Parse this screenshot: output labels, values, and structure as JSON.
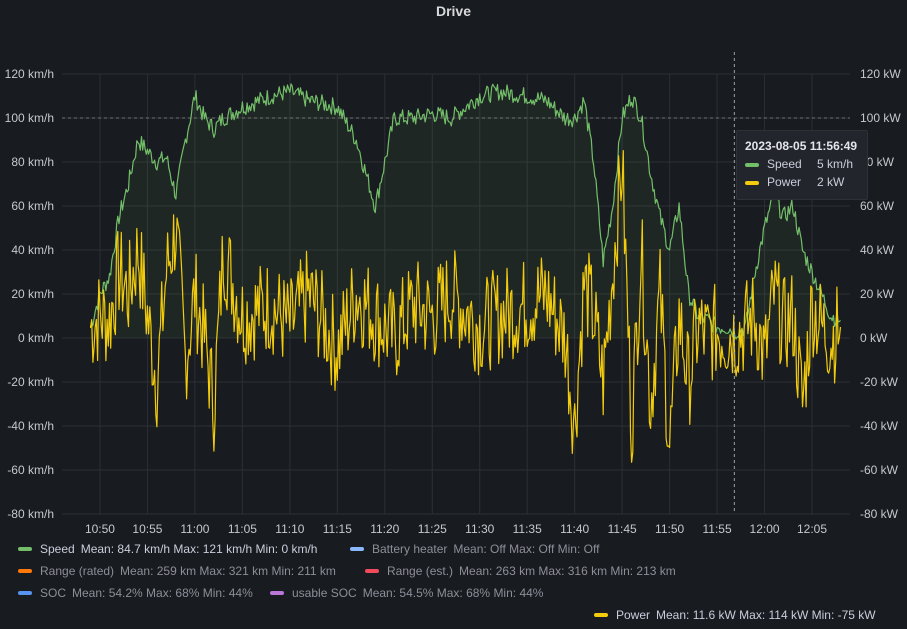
{
  "panel": {
    "title": "Drive"
  },
  "colors": {
    "speed": "#73bf69",
    "power": "#f2cc0c",
    "battery_heater": "#8ab8ff",
    "range_rated": "#ff780a",
    "range_est": "#f2495c",
    "soc": "#5794f2",
    "usable_soc": "#b877d9",
    "background": "#181b1f",
    "grid": "#2c2f35"
  },
  "chart_data": {
    "type": "line",
    "title": "Drive",
    "x_ticks": [
      "10:50",
      "10:55",
      "11:00",
      "11:05",
      "11:10",
      "11:15",
      "11:20",
      "11:25",
      "11:30",
      "11:35",
      "11:40",
      "11:45",
      "11:50",
      "11:55",
      "12:00",
      "12:05"
    ],
    "y_left": {
      "ticks": [
        "120 km/h",
        "100 km/h",
        "80 km/h",
        "60 km/h",
        "40 km/h",
        "20 km/h",
        "0 km/h",
        "-20 km/h",
        "-40 km/h",
        "-60 km/h",
        "-80 km/h"
      ],
      "ylim": [
        -80,
        120
      ],
      "unit": "km/h"
    },
    "y_right": {
      "ticks": [
        "120 kW",
        "100 kW",
        "80 kW",
        "60 kW",
        "40 kW",
        "20 kW",
        "0 kW",
        "-20 kW",
        "-40 kW",
        "-60 kW",
        "-80 kW"
      ],
      "ylim": [
        -80,
        120
      ],
      "unit": "kW"
    },
    "threshold_line": 100,
    "cursor_time": "11:56:49",
    "series": [
      {
        "name": "Speed",
        "unit": "km/h",
        "x": [
          "10:49",
          "10:50",
          "10:51",
          "10:52",
          "10:53",
          "10:54",
          "10:55",
          "10:56",
          "10:57",
          "10:58",
          "10:59",
          "11:00",
          "11:01",
          "11:02",
          "11:03",
          "11:05",
          "11:08",
          "11:10",
          "11:12",
          "11:15",
          "11:17",
          "11:19",
          "11:21",
          "11:23",
          "11:25",
          "11:27",
          "11:30",
          "11:32",
          "11:35",
          "11:37",
          "11:39",
          "11:40",
          "11:41",
          "11:42",
          "11:43",
          "11:44",
          "11:45",
          "11:46",
          "11:47",
          "11:48",
          "11:49",
          "11:50",
          "11:51",
          "11:52",
          "11:53",
          "11:54",
          "11:55",
          "11:56",
          "11:57",
          "11:58",
          "11:59",
          "12:00",
          "12:01",
          "12:02",
          "12:03",
          "12:04",
          "12:05",
          "12:06",
          "12:07",
          "12:08"
        ],
        "values": [
          5,
          20,
          28,
          55,
          70,
          90,
          85,
          80,
          82,
          65,
          90,
          110,
          100,
          95,
          100,
          105,
          110,
          112,
          108,
          105,
          90,
          60,
          100,
          100,
          102,
          100,
          110,
          112,
          110,
          108,
          100,
          100,
          108,
          80,
          35,
          60,
          100,
          110,
          100,
          75,
          55,
          40,
          60,
          20,
          10,
          8,
          5,
          5,
          3,
          5,
          30,
          50,
          65,
          55,
          60,
          40,
          30,
          20,
          10,
          8
        ]
      },
      {
        "name": "Power",
        "unit": "kW",
        "x": [
          "10:49",
          "10:50",
          "10:51",
          "10:52",
          "10:53",
          "10:54",
          "10:55",
          "10:56",
          "10:57",
          "10:58",
          "10:59",
          "11:00",
          "11:01",
          "11:02",
          "11:03",
          "11:05",
          "11:08",
          "11:10",
          "11:12",
          "11:15",
          "11:17",
          "11:19",
          "11:21",
          "11:23",
          "11:25",
          "11:27",
          "11:30",
          "11:32",
          "11:35",
          "11:37",
          "11:39",
          "11:40",
          "11:41",
          "11:42",
          "11:43",
          "11:44",
          "11:45",
          "11:46",
          "11:47",
          "11:48",
          "11:49",
          "11:50",
          "11:51",
          "11:52",
          "11:53",
          "11:54",
          "11:55",
          "11:56",
          "11:57",
          "11:58",
          "11:59",
          "12:00",
          "12:01",
          "12:02",
          "12:03",
          "12:04",
          "12:05",
          "12:06",
          "12:07",
          "12:08"
        ],
        "values": [
          5,
          10,
          8,
          30,
          20,
          40,
          10,
          -20,
          30,
          50,
          -10,
          20,
          0,
          -30,
          40,
          10,
          15,
          5,
          20,
          -5,
          20,
          10,
          0,
          15,
          10,
          20,
          5,
          10,
          15,
          20,
          0,
          -40,
          25,
          10,
          -20,
          30,
          80,
          -40,
          40,
          -30,
          20,
          -50,
          10,
          -20,
          5,
          0,
          3,
          2,
          2,
          5,
          10,
          -10,
          20,
          5,
          10,
          -30,
          15,
          5,
          0,
          5
        ]
      }
    ]
  },
  "tooltip": {
    "time": "2023-08-05 11:56:49",
    "rows": [
      {
        "name": "Speed",
        "value": "5 km/h"
      },
      {
        "name": "Power",
        "value": "2 kW"
      }
    ]
  },
  "legend": {
    "row1": [
      {
        "name": "Speed",
        "stats": "Mean: 84.7 km/h   Max: 121 km/h   Min: 0 km/h"
      },
      {
        "name": "Battery heater",
        "stats": "Mean: Off   Max: Off   Min: Off"
      }
    ],
    "row2": [
      {
        "name": "Range (rated)",
        "stats": "Mean: 259 km   Max: 321 km   Min: 211 km"
      },
      {
        "name": "Range (est.)",
        "stats": "Mean: 263 km   Max: 316 km   Min: 213 km"
      }
    ],
    "row3": [
      {
        "name": "SOC",
        "stats": "Mean: 54.2%   Max: 68%   Min: 44%"
      },
      {
        "name": "usable SOC",
        "stats": "Mean: 54.5%   Max: 68%   Min: 44%"
      }
    ],
    "row4": [
      {
        "name": "Power",
        "stats": "Mean: 11.6 kW   Max: 114 kW   Min: -75 kW"
      }
    ]
  }
}
